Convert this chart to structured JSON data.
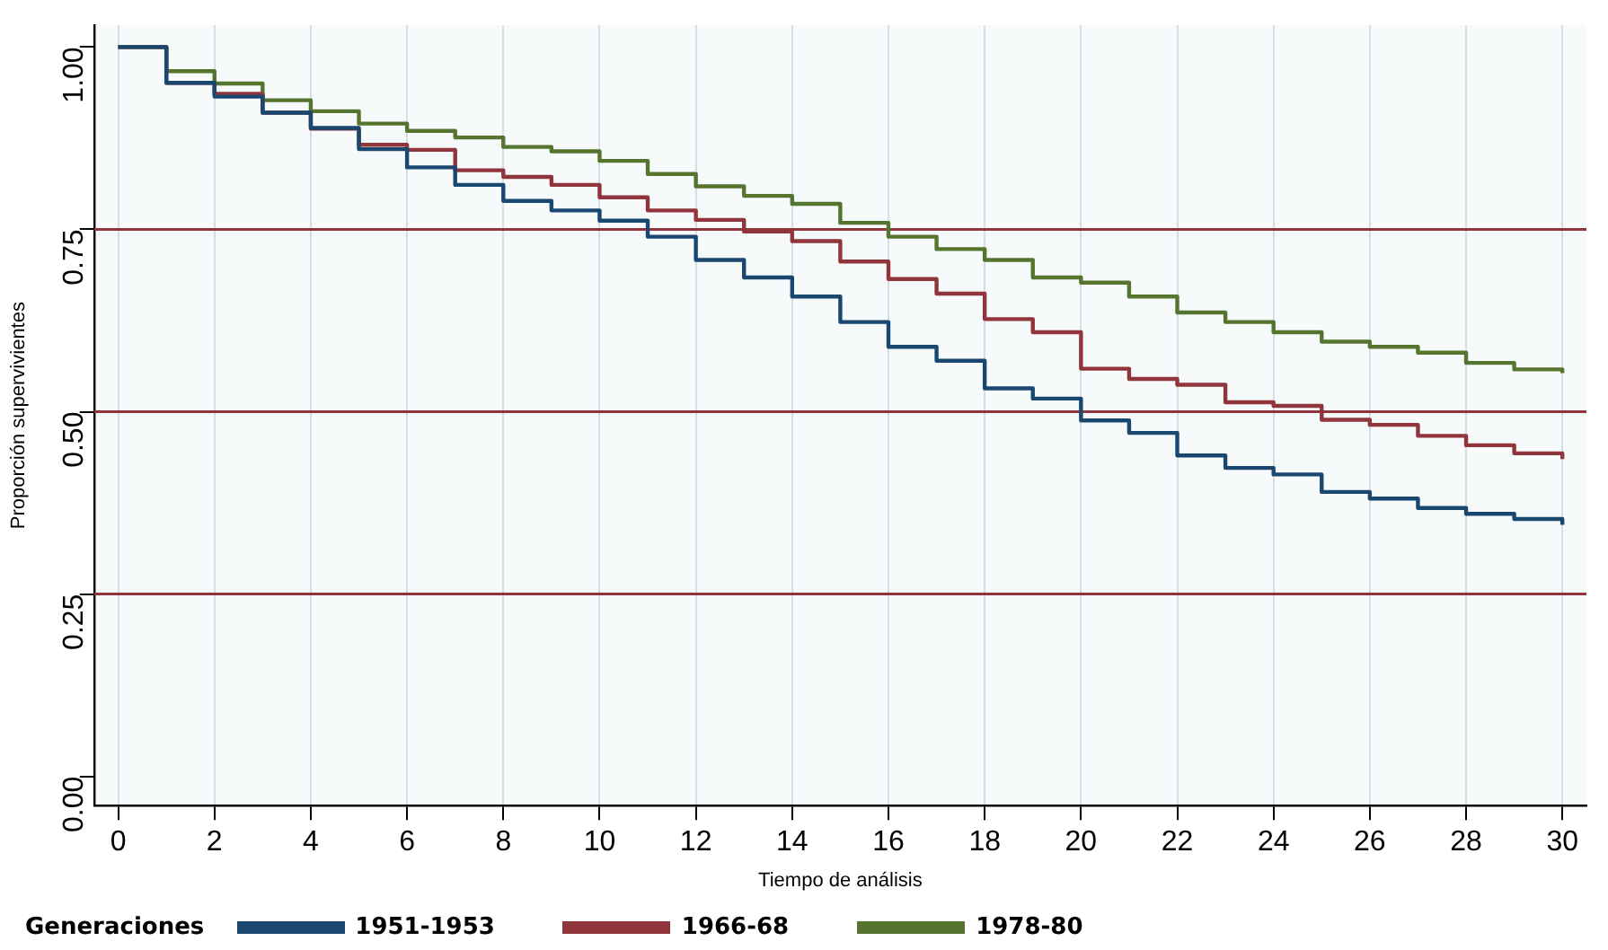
{
  "chart_data": {
    "type": "step",
    "xlabel": "Tiempo de análisis",
    "ylabel": "Proporción supervivientes",
    "legend_title": "Generaciones",
    "legend": "bottom",
    "grid": "x",
    "line_style": "solid",
    "marker": "none",
    "x": [
      0,
      1,
      2,
      3,
      4,
      5,
      6,
      7,
      8,
      9,
      10,
      11,
      12,
      13,
      14,
      15,
      16,
      17,
      18,
      19,
      20,
      21,
      22,
      23,
      24,
      25,
      26,
      27,
      28,
      29,
      30
    ],
    "xlim": [
      -0.5,
      30.5
    ],
    "xticks": [
      0,
      2,
      4,
      6,
      8,
      10,
      12,
      14,
      16,
      18,
      20,
      22,
      24,
      26,
      28,
      30
    ],
    "ylim": [
      -0.04,
      1.03
    ],
    "yticks": [
      {
        "value": 0,
        "label": "0.00"
      },
      {
        "value": 0.25,
        "label": "0.25"
      },
      {
        "value": 0.5,
        "label": "0.50"
      },
      {
        "value": 0.75,
        "label": "0.75"
      },
      {
        "value": 1,
        "label": "1.00"
      }
    ],
    "ref_lines": [
      {
        "axis": "y",
        "value": 0.25,
        "color": "#90353b"
      },
      {
        "axis": "y",
        "value": 0.5,
        "color": "#90353b"
      },
      {
        "axis": "y",
        "value": 0.75,
        "color": "#90353b"
      }
    ],
    "series": [
      {
        "name": "1951-1953",
        "color": "#1a476f",
        "values": [
          1.0,
          0.951,
          0.932,
          0.91,
          0.889,
          0.86,
          0.835,
          0.811,
          0.789,
          0.776,
          0.762,
          0.74,
          0.708,
          0.684,
          0.658,
          0.623,
          0.589,
          0.57,
          0.532,
          0.518,
          0.488,
          0.471,
          0.44,
          0.423,
          0.414,
          0.39,
          0.381,
          0.368,
          0.36,
          0.353,
          0.345
        ]
      },
      {
        "name": "1966-68",
        "color": "#90353b",
        "values": [
          1.0,
          0.951,
          0.936,
          0.91,
          0.888,
          0.866,
          0.859,
          0.831,
          0.822,
          0.811,
          0.794,
          0.776,
          0.763,
          0.747,
          0.734,
          0.706,
          0.682,
          0.662,
          0.627,
          0.609,
          0.559,
          0.545,
          0.537,
          0.513,
          0.508,
          0.489,
          0.482,
          0.467,
          0.454,
          0.443,
          0.435
        ]
      },
      {
        "name": "1978-80",
        "color": "#55752f",
        "values": [
          1.0,
          0.967,
          0.95,
          0.927,
          0.912,
          0.895,
          0.885,
          0.876,
          0.863,
          0.857,
          0.844,
          0.826,
          0.809,
          0.796,
          0.785,
          0.759,
          0.74,
          0.723,
          0.708,
          0.684,
          0.677,
          0.658,
          0.636,
          0.623,
          0.609,
          0.596,
          0.589,
          0.581,
          0.567,
          0.558,
          0.553
        ]
      }
    ]
  }
}
